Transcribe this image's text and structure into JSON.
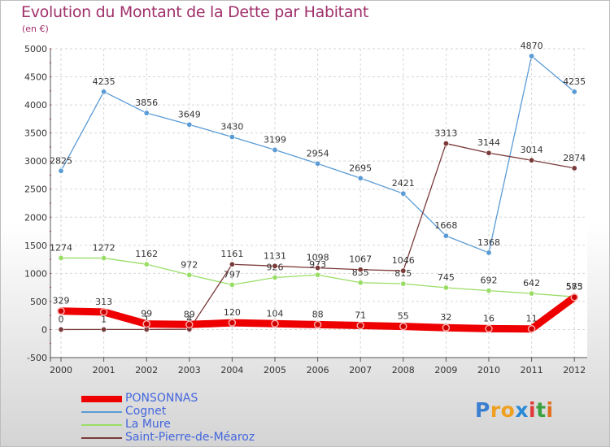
{
  "header": {
    "title": "Evolution du Montant de la Dette par Habitant",
    "subtitle": "(en €)"
  },
  "logo": {
    "text": "Proxiti",
    "letters": [
      "P",
      "r",
      "o",
      "x",
      "i",
      "t",
      "i"
    ],
    "colors": [
      "#3a7fd0",
      "#f0a020",
      "#f0a020",
      "#2a8ad8",
      "#e03a3a",
      "#3aa040",
      "#e07020"
    ]
  },
  "chart_data": {
    "type": "line",
    "title": "Evolution du Montant de la Dette par Habitant",
    "subtitle": "(en €)",
    "x": [
      "2000",
      "2001",
      "2002",
      "2003",
      "2004",
      "2005",
      "2006",
      "2007",
      "2008",
      "2009",
      "2010",
      "2011",
      "2012"
    ],
    "ylim": [
      -500,
      5000
    ],
    "yticks": [
      "-500",
      "0",
      "500",
      "1000",
      "1500",
      "2000",
      "2500",
      "3000",
      "3500",
      "4000",
      "4500",
      "5000"
    ],
    "grid": true,
    "legend_position": "bottom-left",
    "series": [
      {
        "name": "PONSONNAS",
        "color": "#ee0000",
        "values": [
          329,
          313,
          99,
          89,
          120,
          104,
          88,
          71,
          55,
          32,
          16,
          11,
          575
        ],
        "labels": [
          "329",
          "313",
          "99",
          "89",
          "120",
          "104",
          "88",
          "71",
          "55",
          "32",
          "16",
          "11",
          "575"
        ]
      },
      {
        "name": "Cognet",
        "color": "#5a9bd5",
        "values": [
          2825,
          4235,
          3856,
          3649,
          3430,
          3199,
          2954,
          2695,
          2421,
          1668,
          1368,
          4870,
          4235
        ],
        "labels": [
          "2825",
          "4235",
          "3856",
          "3649",
          "3430",
          "3199",
          "2954",
          "2695",
          "2421",
          "1668",
          "1368",
          "4870",
          "4235"
        ]
      },
      {
        "name": "La Mure",
        "color": "#99dd66",
        "values": [
          1274,
          1272,
          1162,
          972,
          797,
          926,
          973,
          835,
          815,
          745,
          692,
          642,
          583
        ],
        "labels": [
          "1274",
          "1272",
          "1162",
          "972",
          "797",
          "926",
          "973",
          "835",
          "815",
          "745",
          "692",
          "642",
          "583"
        ]
      },
      {
        "name": "Saint-Pierre-de-Méaroz",
        "color": "#7a3a3a",
        "values": [
          0,
          1,
          1,
          4,
          1161,
          1131,
          1098,
          1067,
          1046,
          3313,
          3144,
          3014,
          2874
        ],
        "labels": [
          "0",
          "1",
          "1",
          "4",
          "1161",
          "1131",
          "1098",
          "1067",
          "1046",
          "3313",
          "3144",
          "3014",
          "2874"
        ]
      }
    ]
  }
}
